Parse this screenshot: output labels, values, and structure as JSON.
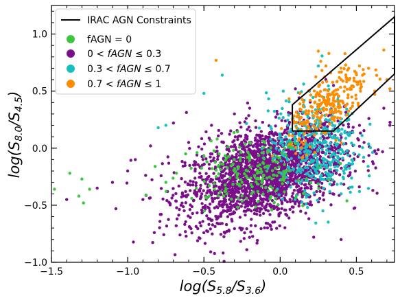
{
  "chart_data": {
    "type": "scatter",
    "xlabel": "log(S5.8/S3.6)",
    "ylabel": "log(S8.0/S4.5)",
    "xlim": [
      -1.5,
      0.75
    ],
    "ylim": [
      -1.0,
      1.25
    ],
    "x_ticks": [
      -1.5,
      -1.0,
      -0.5,
      0.0,
      0.5
    ],
    "y_ticks": [
      -1.0,
      -0.5,
      0.0,
      0.5,
      1.0
    ],
    "x_tick_labels": [
      "−1.5",
      "−1.0",
      "−0.5",
      "0.0",
      "0.5"
    ],
    "y_tick_labels": [
      "−1.0",
      "−0.5",
      "0.0",
      "0.5",
      "1.0"
    ],
    "legend_position": "top-left",
    "constraint_line": {
      "name": "IRAC AGN Constraints",
      "color": "#000000",
      "x": [
        0.08,
        0.08,
        0.75,
        0.75,
        0.35,
        0.08
      ],
      "y": [
        0.15,
        0.38,
        1.15,
        0.65,
        0.15,
        0.15
      ]
    },
    "series": [
      {
        "name": "fAGN = 0",
        "color": "#3cc63c",
        "points": [
          [
            -1.48,
            -0.36
          ],
          [
            -1.38,
            -0.22
          ],
          [
            -1.32,
            -0.42
          ],
          [
            -1.3,
            -0.27
          ],
          [
            -1.25,
            -0.36
          ],
          [
            -1.29,
            -0.48
          ],
          [
            -0.88,
            -0.41
          ],
          [
            -0.82,
            -0.16
          ],
          [
            -0.75,
            -0.3
          ],
          [
            -0.68,
            -0.22
          ],
          [
            -0.62,
            -0.05
          ],
          [
            -0.55,
            -0.35
          ],
          [
            -0.48,
            -0.12
          ],
          [
            -0.42,
            -0.25
          ],
          [
            -0.35,
            -0.4
          ],
          [
            -0.3,
            -0.18
          ],
          [
            -0.25,
            -0.3
          ],
          [
            -0.2,
            -0.08
          ],
          [
            -0.15,
            -0.22
          ],
          [
            -0.1,
            0.05
          ],
          [
            -0.05,
            -0.35
          ],
          [
            -0.02,
            -0.12
          ],
          [
            0.03,
            0.0
          ],
          [
            0.06,
            -0.2
          ],
          [
            0.1,
            0.04
          ],
          [
            -0.58,
            -0.44
          ],
          [
            -0.4,
            -0.05
          ],
          [
            -0.33,
            -0.26
          ],
          [
            -0.22,
            -0.44
          ],
          [
            -0.12,
            -0.04
          ]
        ],
        "cluster": {
          "cx": -0.2,
          "cy": -0.22,
          "sx": 0.2,
          "sy": 0.14,
          "n": 180
        }
      },
      {
        "name": "0 < fAGN ≤ 0.3",
        "color": "#7a0f8a",
        "points": [
          [
            -1.4,
            -0.45
          ],
          [
            -1.1,
            -0.3
          ],
          [
            -0.95,
            -0.1
          ],
          [
            -0.9,
            -0.45
          ],
          [
            -0.7,
            0.22
          ],
          [
            -0.6,
            0.05
          ],
          [
            -0.78,
            -0.58
          ],
          [
            -0.52,
            -0.68
          ],
          [
            0.22,
            -0.78
          ],
          [
            0.4,
            -0.8
          ],
          [
            0.55,
            0.05
          ],
          [
            0.68,
            0.35
          ],
          [
            0.3,
            0.6
          ],
          [
            -0.2,
            0.35
          ],
          [
            -0.85,
            0.02
          ],
          [
            -1.0,
            -0.2
          ],
          [
            -1.2,
            -0.35
          ],
          [
            0.45,
            -0.35
          ],
          [
            0.35,
            0.55
          ],
          [
            0.72,
            0.2
          ],
          [
            -0.3,
            0.3
          ],
          [
            0.1,
            0.52
          ],
          [
            -0.65,
            -0.5
          ],
          [
            -0.45,
            0.2
          ]
        ],
        "cluster": {
          "cx": -0.1,
          "cy": -0.22,
          "sx": 0.26,
          "sy": 0.2,
          "n": 2200
        }
      },
      {
        "name": "0.3 < fAGN ≤ 0.7",
        "color": "#17bfc0",
        "points": [
          [
            -0.8,
            0.18
          ],
          [
            -0.75,
            0.2
          ],
          [
            -0.5,
            0.48
          ],
          [
            -0.38,
            0.64
          ],
          [
            0.02,
            0.5
          ],
          [
            0.25,
            0.72
          ],
          [
            0.4,
            -0.4
          ],
          [
            0.52,
            -0.38
          ],
          [
            0.28,
            -0.55
          ],
          [
            0.18,
            -0.52
          ],
          [
            0.45,
            0.25
          ],
          [
            0.12,
            0.3
          ],
          [
            0.05,
            0.2
          ],
          [
            0.3,
            0.25
          ],
          [
            0.2,
            -0.2
          ],
          [
            0.35,
            -0.1
          ],
          [
            0.42,
            -0.22
          ],
          [
            0.05,
            -0.3
          ],
          [
            0.15,
            0.1
          ],
          [
            0.25,
            0.05
          ]
        ],
        "cluster": {
          "cx": 0.22,
          "cy": 0.02,
          "sx": 0.15,
          "sy": 0.22,
          "n": 420
        }
      },
      {
        "name": "0.7 < fAGN ≤ 1",
        "color": "#ff8c00",
        "points": [
          [
            -0.42,
            0.77
          ],
          [
            0.25,
            0.85
          ],
          [
            0.32,
            0.83
          ],
          [
            0.52,
            0.72
          ],
          [
            0.58,
            0.7
          ],
          [
            0.68,
            0.86
          ],
          [
            0.7,
            0.6
          ],
          [
            0.62,
            0.5
          ],
          [
            0.72,
            0.52
          ],
          [
            0.5,
            0.58
          ],
          [
            0.45,
            0.7
          ],
          [
            0.3,
            0.72
          ],
          [
            0.55,
            0.65
          ],
          [
            0.4,
            0.6
          ]
        ],
        "cluster": {
          "cx": 0.32,
          "cy": 0.38,
          "sx": 0.13,
          "sy": 0.13,
          "n": 260
        }
      }
    ]
  },
  "legend": {
    "line_label": "IRAC AGN Constraints",
    "item0_label": "fAGN = 0",
    "item1_left": "0 < ",
    "item1_mid": "fAGN",
    "item1_right": " ≤ 0.3",
    "item2_left": "0.3 < ",
    "item2_mid": "fAGN",
    "item2_right": " ≤ 0.7",
    "item3_left": "0.7 < ",
    "item3_mid": "fAGN",
    "item3_right": " ≤ 1"
  },
  "axis": {
    "xlabel_main": "log(S",
    "xlabel_sub1": "5.8",
    "xlabel_mid": "/S",
    "xlabel_sub2": "3.6",
    "xlabel_end": ")",
    "ylabel_main": "log(S",
    "ylabel_sub1": "8.0",
    "ylabel_mid": "/S",
    "ylabel_sub2": "4.5",
    "ylabel_end": ")"
  }
}
